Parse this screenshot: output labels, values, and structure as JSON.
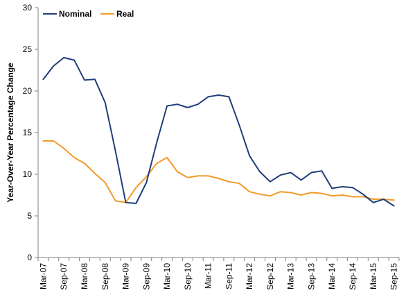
{
  "chart_data": {
    "type": "line",
    "title": "",
    "xlabel": "",
    "ylabel": "Year-Over-Year Percentage Change",
    "ylim": [
      0,
      30
    ],
    "yticks": [
      0,
      5,
      10,
      15,
      20,
      25,
      30
    ],
    "grid": false,
    "legend_position": "top-left",
    "x_tick_labels": [
      "Mar-07",
      "Sep-07",
      "Mar-08",
      "Sep-08",
      "Mar-09",
      "Sep-09",
      "Mar-10",
      "Sep-10",
      "Mar-11",
      "Sep-11",
      "Mar-12",
      "Sep-12",
      "Mar-13",
      "Sep-13",
      "Mar-14",
      "Sep-14",
      "Mar-15",
      "Sep-15"
    ],
    "x": [
      "Mar-07",
      "Jun-07",
      "Sep-07",
      "Dec-07",
      "Mar-08",
      "Jun-08",
      "Sep-08",
      "Dec-08",
      "Mar-09",
      "Jun-09",
      "Sep-09",
      "Dec-09",
      "Mar-10",
      "Jun-10",
      "Sep-10",
      "Dec-10",
      "Mar-11",
      "Jun-11",
      "Sep-11",
      "Dec-11",
      "Mar-12",
      "Jun-12",
      "Sep-12",
      "Dec-12",
      "Mar-13",
      "Jun-13",
      "Sep-13",
      "Dec-13",
      "Mar-14",
      "Jun-14",
      "Sep-14",
      "Dec-14",
      "Mar-15",
      "Jun-15",
      "Sep-15"
    ],
    "series": [
      {
        "name": "Nominal",
        "color": "#1f3d7a",
        "values": [
          21.4,
          23.0,
          24.0,
          23.7,
          21.3,
          21.4,
          18.6,
          12.8,
          6.6,
          6.5,
          9.0,
          13.8,
          18.2,
          18.4,
          18.0,
          18.4,
          19.3,
          19.5,
          19.3,
          15.9,
          12.2,
          10.3,
          9.1,
          9.9,
          10.2,
          9.3,
          10.2,
          10.4,
          8.3,
          8.5,
          8.4,
          7.6,
          6.6,
          7.0,
          6.2
        ]
      },
      {
        "name": "Real",
        "color": "#f39a27",
        "values": [
          14.0,
          14.0,
          13.1,
          12.0,
          11.3,
          10.1,
          9.0,
          6.8,
          6.6,
          8.4,
          9.7,
          11.3,
          12.0,
          10.3,
          9.6,
          9.8,
          9.8,
          9.5,
          9.1,
          8.9,
          7.9,
          7.6,
          7.4,
          7.9,
          7.8,
          7.5,
          7.8,
          7.7,
          7.4,
          7.5,
          7.3,
          7.3,
          7.0,
          7.0,
          6.9
        ]
      }
    ]
  }
}
